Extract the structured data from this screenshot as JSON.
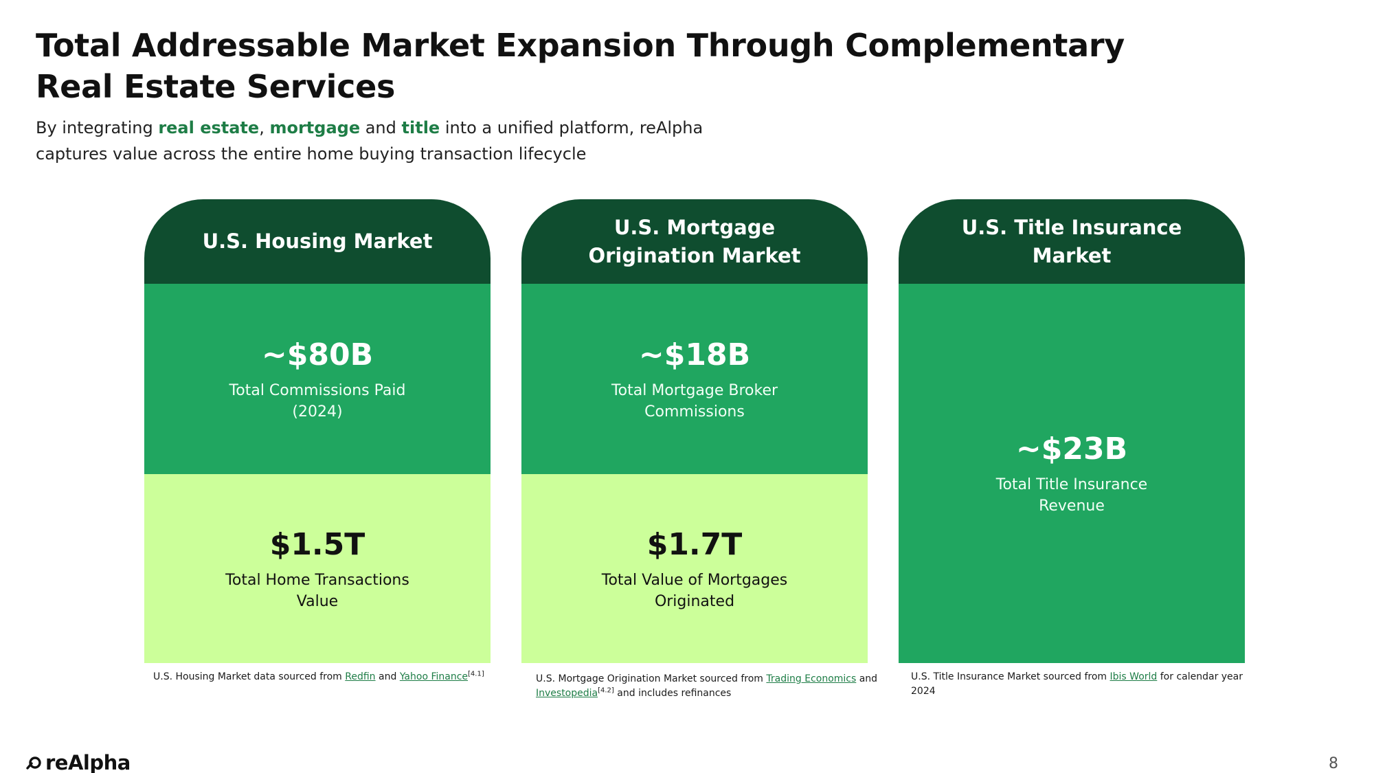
{
  "slide": {
    "title": "Total Addressable Market Expansion Through Complementary Real Estate Services",
    "subtitle": {
      "part1": "By integrating ",
      "hl1": "real estate",
      "part2": ", ",
      "hl2": "mortgage",
      "part3": " and ",
      "hl3": "title",
      "part4": " into a unified platform, reAlpha captures value across the entire home buying transaction lifecycle"
    },
    "page_number": "8"
  },
  "colors": {
    "header_dark_green": "#0f4d2f",
    "mid_green": "#20a660",
    "light_green": "#ccff9a",
    "highlight_green": "#1e7d46"
  },
  "cards": [
    {
      "header": "U.S. Housing Market",
      "mid_value": "~$80B",
      "mid_label": "Total Commissions Paid\n(2024)",
      "low_value": "$1.5T",
      "low_label": "Total Home Transactions\nValue"
    },
    {
      "header": "U.S. Mortgage Origination Market",
      "mid_value": "~$18B",
      "mid_label": "Total Mortgage Broker\nCommissions",
      "low_value": "$1.7T",
      "low_label": "Total Value of Mortgages\nOriginated"
    },
    {
      "header": "U.S. Title Insurance Market",
      "value": "~$23B",
      "label": "Total Title Insurance\nRevenue"
    }
  ],
  "sources": [
    {
      "t1": "U.S. Housing Market data sourced from ",
      "link1": "Redfin",
      "t2": " and ",
      "link2": "Yahoo Finance",
      "sup": "[4.1]"
    },
    {
      "t1": "U.S. Mortgage Origination Market sourced from ",
      "link1": "Trading Economics",
      "t2": " and ",
      "link2": "Investopedia",
      "sup": "[4.2]",
      "t3": " and includes refinances"
    },
    {
      "t1": "U.S. Title Insurance Market sourced from ",
      "link1": "Ibis World",
      "t2": " for calendar year 2024"
    }
  ],
  "logo": {
    "text": "reAlpha",
    "icon": "realpha-logo-icon"
  }
}
